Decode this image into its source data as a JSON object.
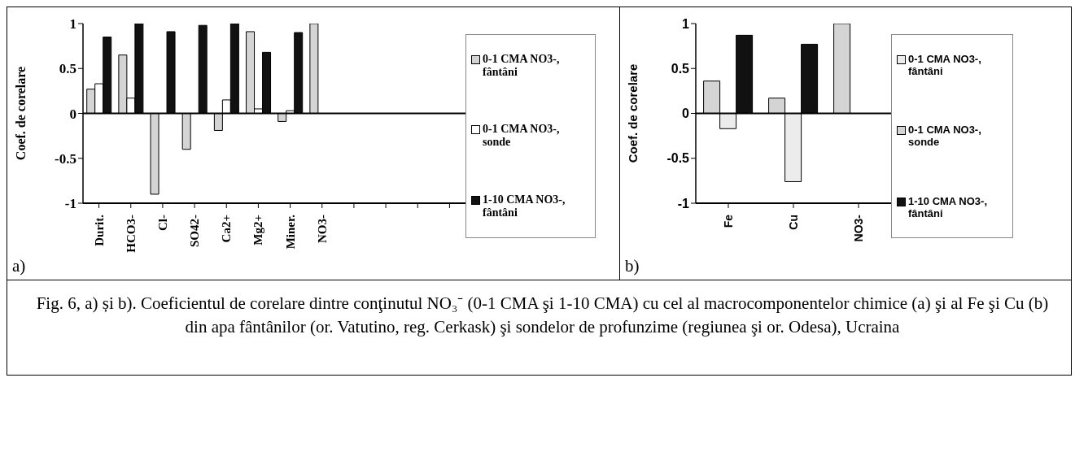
{
  "chart_data": [
    {
      "type": "bar",
      "ylabel": "Coef. de corelare",
      "categories": [
        "Durit.",
        "HCO3-",
        "Cl-",
        "SO42-",
        "Ca2+",
        "Mg2+",
        "Miner.",
        "NO3-",
        null,
        null,
        null,
        null
      ],
      "series": [
        {
          "name": "0-1 CMA NO3-, fântâni",
          "color": "#d4d4d4",
          "values": [
            0.27,
            0.65,
            -0.9,
            -0.4,
            -0.19,
            0.91,
            -0.09,
            1,
            null,
            null,
            null,
            null
          ]
        },
        {
          "name": "0-1 CMA NO3-, sonde",
          "color": "#ffffff",
          "values": [
            0.33,
            0.17,
            null,
            null,
            0.15,
            0.05,
            0.03,
            null,
            null,
            null,
            null,
            null
          ]
        },
        {
          "name": "1-10 CMA NO3-, fântâni",
          "color": "#111111",
          "values": [
            0.85,
            1,
            0.91,
            0.98,
            1,
            0.68,
            0.9,
            null,
            null,
            null,
            null,
            null
          ]
        }
      ],
      "ylim": [
        -1,
        1
      ],
      "yticks": [
        -1,
        -0.5,
        0,
        0.5,
        1
      ],
      "legend": "right",
      "annotations": [
        "a)"
      ]
    },
    {
      "type": "bar",
      "ylabel": "Coef. de corelare",
      "categories": [
        "Fe",
        "Cu",
        "NO3-"
      ],
      "series": [
        {
          "name": "0-1 CMA NO3-, sonde",
          "color": "#d4d4d4",
          "values": [
            0.36,
            0.17,
            1
          ]
        },
        {
          "name": "0-1 CMA NO3-, fântâni",
          "color": "#ececec",
          "values": [
            -0.17,
            -0.76,
            null
          ]
        },
        {
          "name": "1-10 CMA NO3-, fântâni",
          "color": "#111111",
          "values": [
            0.87,
            0.77,
            null
          ]
        }
      ],
      "ylim": [
        -1,
        1
      ],
      "yticks": [
        -1,
        -0.5,
        0,
        0.5,
        1
      ],
      "legend": "right",
      "annotations": [
        "b)"
      ]
    },
    {
      "type": "other",
      "annotations": [
        "Fig. 6, a) și b). Coeficientul de corelare dintre conţinutul NO₃⁻ (0-1 CMA şi 1-10 CMA) cu cel al macrocomponentelor chimice (a) şi al Fe şi Cu (b) din apa fântânilor (or. Vatutino, reg. Cerkask) şi sondelor de profunzime (regiunea şi or. Odesa), Ucraina"
      ]
    }
  ]
}
